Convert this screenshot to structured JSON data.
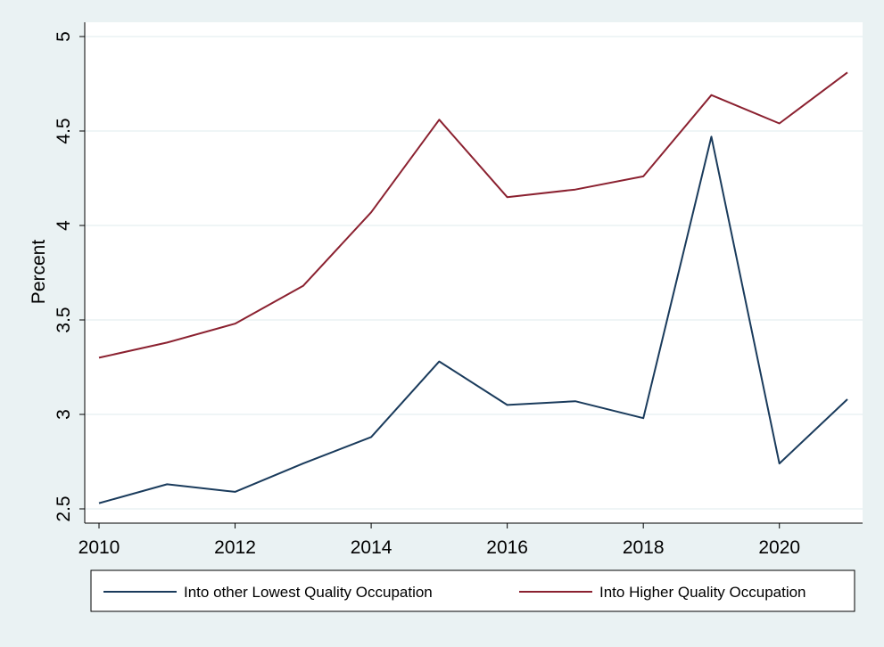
{
  "chart_data": {
    "type": "line",
    "title": "",
    "xlabel": "",
    "ylabel": "Percent",
    "xlim": [
      2010,
      2021
    ],
    "ylim": [
      2.5,
      5
    ],
    "x_ticks": [
      2010,
      2012,
      2014,
      2016,
      2018,
      2020
    ],
    "y_ticks": [
      2.5,
      3,
      3.5,
      4,
      4.5,
      5
    ],
    "y_tick_labels": [
      "2.5",
      "3",
      "3.5",
      "4",
      "4.5",
      "5"
    ],
    "grid": true,
    "legend_position": "bottom",
    "x": [
      2010,
      2011,
      2012,
      2013,
      2014,
      2015,
      2016,
      2017,
      2018,
      2019,
      2020,
      2021
    ],
    "series": [
      {
        "name": "Into other Lowest Quality Occupation",
        "color": "#1a3b5c",
        "values": [
          2.53,
          2.63,
          2.59,
          2.74,
          2.88,
          3.28,
          3.05,
          3.07,
          2.98,
          4.47,
          2.74,
          3.08
        ]
      },
      {
        "name": "Into Higher Quality Occupation",
        "color": "#8b2130",
        "values": [
          3.3,
          3.38,
          3.48,
          3.68,
          4.07,
          4.56,
          4.15,
          4.19,
          4.26,
          4.69,
          4.54,
          4.81
        ]
      }
    ]
  }
}
